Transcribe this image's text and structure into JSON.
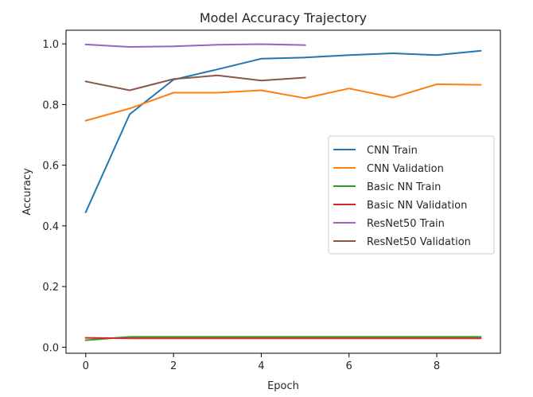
{
  "chart_data": {
    "type": "line",
    "title": "Model Accuracy Trajectory",
    "xlabel": "Epoch",
    "ylabel": "Accuracy",
    "xlim": [
      -0.45,
      9.45
    ],
    "ylim": [
      -0.02,
      1.045
    ],
    "xticks": [
      0,
      2,
      4,
      6,
      8
    ],
    "yticks": [
      0.0,
      0.2,
      0.4,
      0.6,
      0.8,
      1.0
    ],
    "ytick_labels": [
      "0.0",
      "0.2",
      "0.4",
      "0.6",
      "0.8",
      "1.0"
    ],
    "grid": false,
    "legend_position": "center-right",
    "series": [
      {
        "name": "CNN Train",
        "color": "#1f77b4",
        "x": [
          0,
          1,
          2,
          3,
          4,
          5,
          6,
          7,
          8,
          9
        ],
        "values": [
          0.445,
          0.768,
          0.882,
          0.916,
          0.951,
          0.955,
          0.963,
          0.969,
          0.963,
          0.977
        ]
      },
      {
        "name": "CNN Validation",
        "color": "#ff7f0e",
        "x": [
          0,
          1,
          2,
          3,
          4,
          5,
          6,
          7,
          8,
          9
        ],
        "values": [
          0.747,
          0.787,
          0.839,
          0.839,
          0.847,
          0.821,
          0.853,
          0.823,
          0.867,
          0.865
        ]
      },
      {
        "name": "Basic NN Train",
        "color": "#2ca02c",
        "x": [
          0,
          1,
          2,
          3,
          4,
          5,
          6,
          7,
          8,
          9
        ],
        "values": [
          0.023,
          0.034,
          0.034,
          0.034,
          0.034,
          0.034,
          0.034,
          0.034,
          0.034,
          0.034
        ]
      },
      {
        "name": "Basic NN Validation",
        "color": "#d62728",
        "x": [
          0,
          1,
          2,
          3,
          4,
          5,
          6,
          7,
          8,
          9
        ],
        "values": [
          0.031,
          0.029,
          0.029,
          0.029,
          0.029,
          0.029,
          0.029,
          0.029,
          0.029,
          0.029
        ]
      },
      {
        "name": "ResNet50 Train",
        "color": "#9467bd",
        "x": [
          0,
          1,
          2,
          3,
          4,
          5
        ],
        "values": [
          0.998,
          0.99,
          0.992,
          0.997,
          0.999,
          0.996
        ]
      },
      {
        "name": "ResNet50 Validation",
        "color": "#8c564b",
        "x": [
          0,
          1,
          2,
          3,
          4,
          5
        ],
        "values": [
          0.876,
          0.847,
          0.884,
          0.896,
          0.879,
          0.889
        ]
      }
    ]
  }
}
